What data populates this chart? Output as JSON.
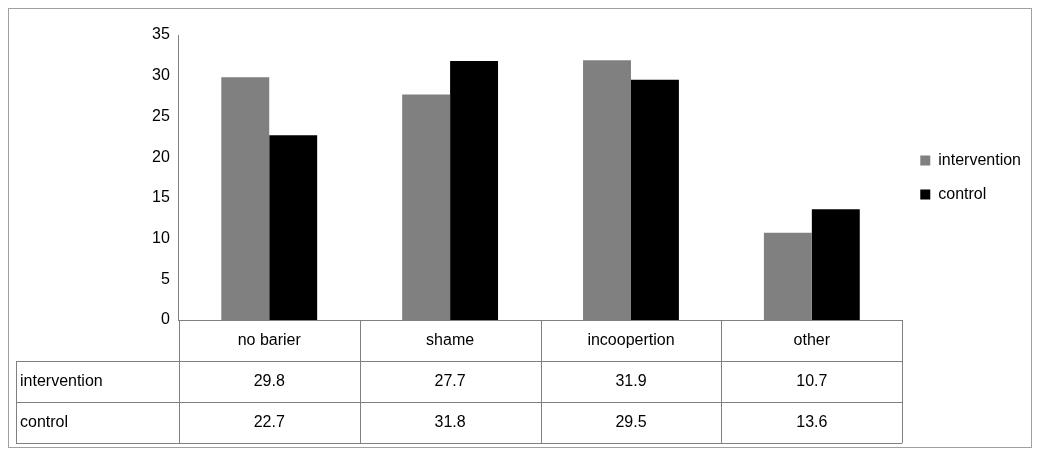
{
  "chart_data": {
    "type": "bar",
    "categories": [
      "no barier",
      "shame",
      "incoopertion",
      "other"
    ],
    "series": [
      {
        "name": "intervention",
        "color": "#808080",
        "values": [
          29.8,
          27.7,
          31.9,
          10.7
        ]
      },
      {
        "name": "control",
        "color": "#000000",
        "values": [
          22.7,
          31.8,
          29.5,
          13.6
        ]
      }
    ],
    "ylim": [
      0,
      35
    ],
    "yticks": [
      0,
      5,
      10,
      15,
      20,
      25,
      30,
      35
    ],
    "grid": false,
    "legend": "right",
    "data_labels": true
  }
}
